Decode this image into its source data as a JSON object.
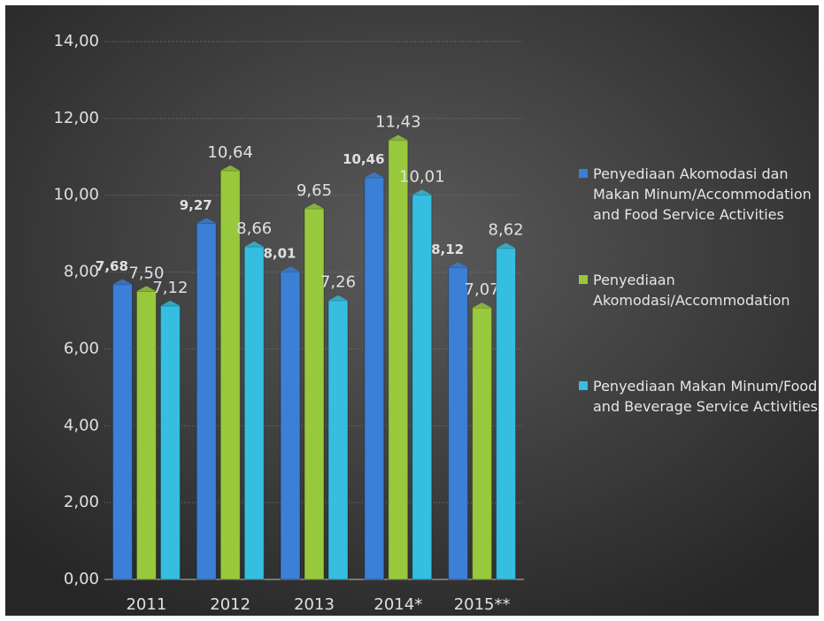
{
  "chart_data": {
    "type": "bar",
    "categories": [
      "2011",
      "2012",
      "2013",
      "2014*",
      "2015**"
    ],
    "series": [
      {
        "name": "Penyediaan Akomodasi dan Makan Minum/Accommodation and Food Service Activities",
        "color": "#3b7fd6",
        "values": [
          7.68,
          9.27,
          8.01,
          10.46,
          8.12
        ],
        "value_labels": [
          "7,68",
          "9,27",
          "8,01",
          "10,46",
          "8,12"
        ]
      },
      {
        "name": "Penyediaan Akomodasi/Accommodation",
        "color": "#98c93c",
        "values": [
          7.5,
          10.64,
          9.65,
          11.43,
          7.07
        ],
        "value_labels": [
          "7,50",
          "10,64",
          "9,65",
          "11,43",
          "7,07"
        ]
      },
      {
        "name": "Penyediaan Makan Minum/Food and Beverage Service Activities",
        "color": "#35bedf",
        "values": [
          7.12,
          8.66,
          7.26,
          10.01,
          8.62
        ],
        "value_labels": [
          "7,12",
          "8,66",
          "7,26",
          "10,01",
          "8,62"
        ]
      }
    ],
    "ylim": [
      0,
      14
    ],
    "yticks": [
      {
        "value": 0,
        "label": "0,00"
      },
      {
        "value": 2,
        "label": "2,00"
      },
      {
        "value": 4,
        "label": "4,00"
      },
      {
        "value": 6,
        "label": "6,00"
      },
      {
        "value": 8,
        "label": "8,00"
      },
      {
        "value": 10,
        "label": "10,00"
      },
      {
        "value": 12,
        "label": "12,00"
      },
      {
        "value": 14,
        "label": "14,00"
      }
    ],
    "grid": true,
    "legend": "right"
  }
}
